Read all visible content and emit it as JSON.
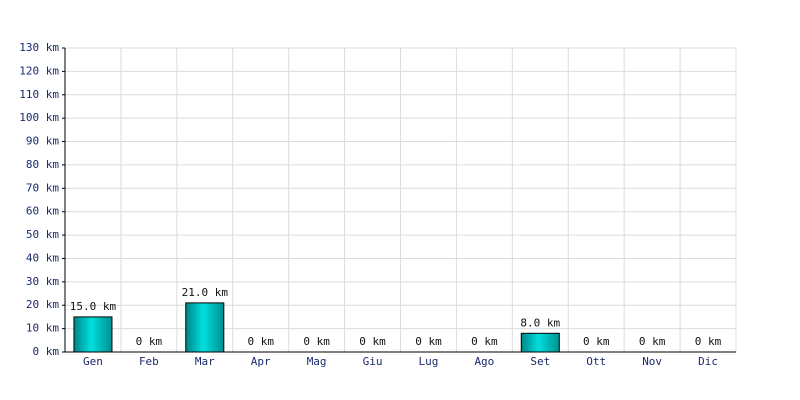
{
  "chart_data": {
    "type": "bar",
    "categories": [
      "Gen",
      "Feb",
      "Mar",
      "Apr",
      "Mag",
      "Giu",
      "Lug",
      "Ago",
      "Set",
      "Ott",
      "Nov",
      "Dic"
    ],
    "values": [
      15,
      0,
      21,
      0,
      0,
      0,
      0,
      0,
      8,
      0,
      0,
      0
    ],
    "value_labels": [
      "15.0 km",
      "0 km",
      "21.0 km",
      "0 km",
      "0 km",
      "0 km",
      "0 km",
      "0 km",
      "8.0 km",
      "0 km",
      "0 km",
      "0 km"
    ],
    "color": "#00dede",
    "ylim": [
      0,
      130
    ],
    "yticks": [
      {
        "value": 0,
        "label": "0 km"
      },
      {
        "value": 10,
        "label": "10 km"
      },
      {
        "value": 20,
        "label": "20 km"
      },
      {
        "value": 30,
        "label": "30 km"
      },
      {
        "value": 40,
        "label": "40 km"
      },
      {
        "value": 50,
        "label": "50 km"
      },
      {
        "value": 60,
        "label": "60 km"
      },
      {
        "value": 70,
        "label": "70 km"
      },
      {
        "value": 80,
        "label": "80 km"
      },
      {
        "value": 90,
        "label": "90 km"
      },
      {
        "value": 100,
        "label": "100 km"
      },
      {
        "value": 110,
        "label": "110 km"
      },
      {
        "value": 120,
        "label": "120 km"
      },
      {
        "value": 130,
        "label": "130 km"
      }
    ],
    "grid": true
  }
}
